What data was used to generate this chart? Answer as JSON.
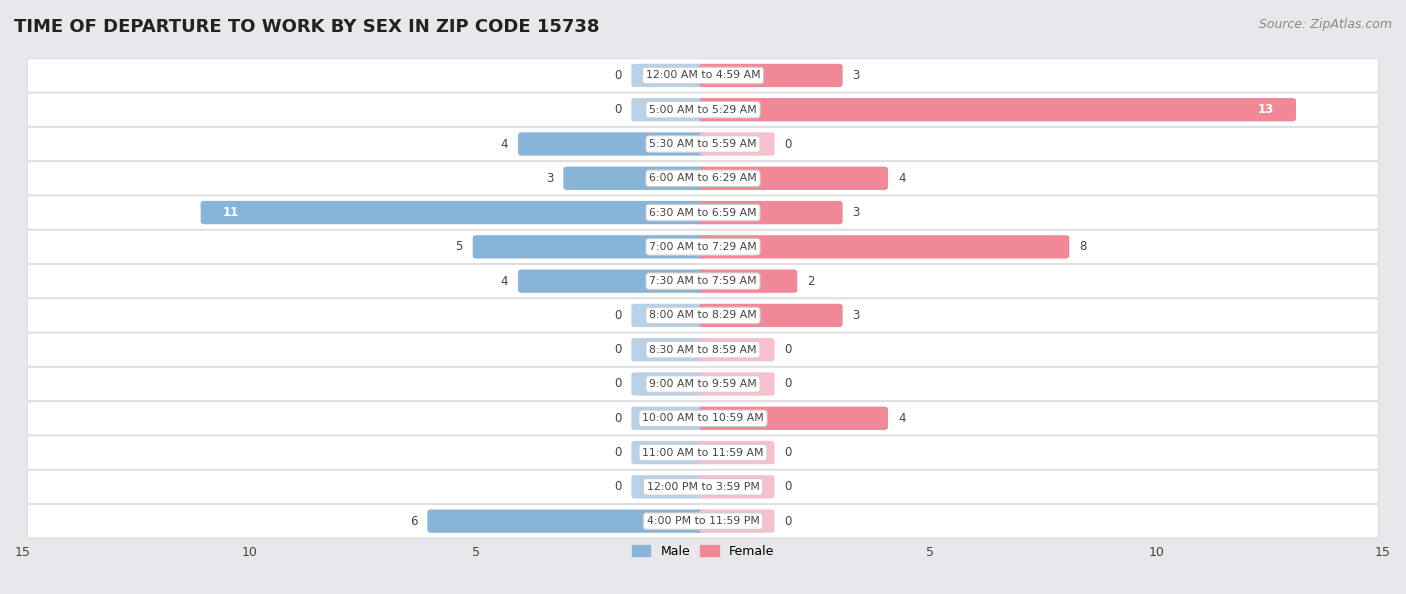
{
  "title": "TIME OF DEPARTURE TO WORK BY SEX IN ZIP CODE 15738",
  "source": "Source: ZipAtlas.com",
  "categories": [
    "12:00 AM to 4:59 AM",
    "5:00 AM to 5:29 AM",
    "5:30 AM to 5:59 AM",
    "6:00 AM to 6:29 AM",
    "6:30 AM to 6:59 AM",
    "7:00 AM to 7:29 AM",
    "7:30 AM to 7:59 AM",
    "8:00 AM to 8:29 AM",
    "8:30 AM to 8:59 AM",
    "9:00 AM to 9:59 AM",
    "10:00 AM to 10:59 AM",
    "11:00 AM to 11:59 AM",
    "12:00 PM to 3:59 PM",
    "4:00 PM to 11:59 PM"
  ],
  "male": [
    0,
    0,
    4,
    3,
    11,
    5,
    4,
    0,
    0,
    0,
    0,
    0,
    0,
    6
  ],
  "female": [
    3,
    13,
    0,
    4,
    3,
    8,
    2,
    3,
    0,
    0,
    4,
    0,
    0,
    0
  ],
  "male_color": "#88b4d8",
  "female_color": "#f08898",
  "male_color_light": "#b8d0e8",
  "female_color_light": "#f8c0cc",
  "label_color": "#444444",
  "row_bg_white": "#ffffff",
  "row_sep_color": "#dddddd",
  "outer_bg": "#e8e8ec",
  "xlim": 15,
  "title_fontsize": 13,
  "source_fontsize": 9,
  "bar_height": 0.52,
  "min_stub": 1.5,
  "label_inside_threshold_male": 8,
  "label_inside_threshold_female": 10
}
